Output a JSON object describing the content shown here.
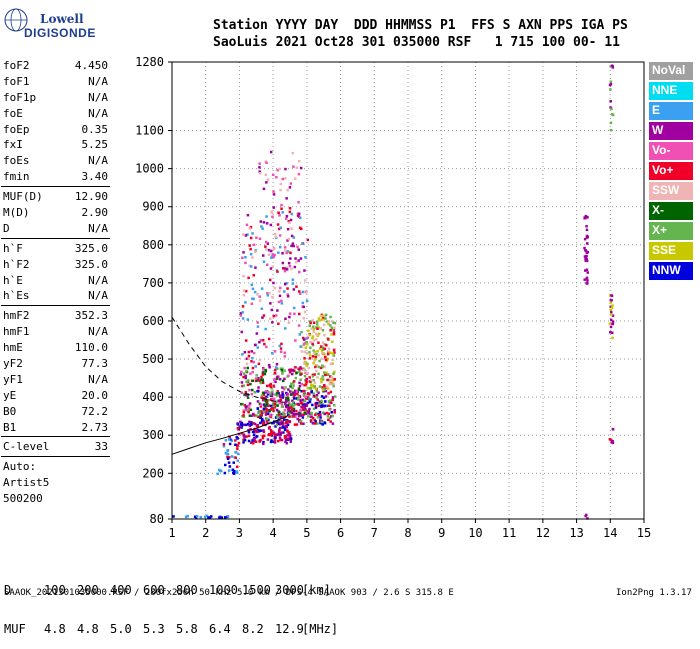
{
  "logo": {
    "line1": "Lowell",
    "line2": "DIGISONDE"
  },
  "header": {
    "line1": "Station YYYY DAY  DDD HHMMSS P1  FFS S AXN PPS IGA PS",
    "line2": "SaoLuis 2021 Oct28 301 035000 RSF   1 715 100 00- 11"
  },
  "params": {
    "group1": [
      {
        "key": "foF2",
        "value": "4.450"
      },
      {
        "key": "foF1",
        "value": "N/A"
      },
      {
        "key": "foF1p",
        "value": "N/A"
      },
      {
        "key": "foE",
        "value": "N/A"
      },
      {
        "key": "foEp",
        "value": "0.35"
      },
      {
        "key": "fxI",
        "value": "5.25"
      },
      {
        "key": "foEs",
        "value": "N/A"
      },
      {
        "key": "fmin",
        "value": "3.40"
      }
    ],
    "group2": [
      {
        "key": "MUF(D)",
        "value": "12.90"
      },
      {
        "key": "M(D)",
        "value": "2.90"
      },
      {
        "key": "D",
        "value": "N/A"
      }
    ],
    "group3": [
      {
        "key": "h`F",
        "value": "325.0"
      },
      {
        "key": "h`F2",
        "value": "325.0"
      },
      {
        "key": "h`E",
        "value": "N/A"
      },
      {
        "key": "h`Es",
        "value": "N/A"
      }
    ],
    "group4": [
      {
        "key": "hmF2",
        "value": "352.3"
      },
      {
        "key": "hmF1",
        "value": "N/A"
      },
      {
        "key": "hmE",
        "value": "110.0"
      },
      {
        "key": "yF2",
        "value": "77.3"
      },
      {
        "key": "yF1",
        "value": "N/A"
      },
      {
        "key": "yE",
        "value": "20.0"
      },
      {
        "key": "B0",
        "value": "72.2"
      },
      {
        "key": "B1",
        "value": "2.73"
      }
    ],
    "clevel": {
      "key": "C-level",
      "value": "33"
    },
    "auto_lines": [
      "Auto:",
      "Artist5",
      "500200"
    ]
  },
  "legend": [
    {
      "label": "NoVal",
      "color": "#a0a0a0"
    },
    {
      "label": "NNE",
      "color": "#00dcf0"
    },
    {
      "label": "E",
      "color": "#3ca0f0"
    },
    {
      "label": "W",
      "color": "#a000a0"
    },
    {
      "label": "Vo-",
      "color": "#f050b4"
    },
    {
      "label": "Vo+",
      "color": "#f00028"
    },
    {
      "label": "SSW",
      "color": "#f0b4b4"
    },
    {
      "label": "X-",
      "color": "#006400"
    },
    {
      "label": "X+",
      "color": "#64b450"
    },
    {
      "label": "SSE",
      "color": "#c8c800"
    },
    {
      "label": "NNW",
      "color": "#0000dc"
    }
  ],
  "chart_data": {
    "type": "scatter",
    "xlabel": "",
    "ylabel": "",
    "xlim": [
      1,
      15
    ],
    "ylim": [
      80,
      1280
    ],
    "x_ticks": [
      "1",
      "2",
      "3",
      "4",
      "5",
      "6",
      "7",
      "8",
      "9",
      "10",
      "11",
      "12",
      "13",
      "14",
      "15"
    ],
    "y_ticks": [
      "80",
      "200",
      "300",
      "400",
      "500",
      "600",
      "700",
      "800",
      "900",
      "1000",
      "1100",
      "1280"
    ],
    "grid": true,
    "profile_line": {
      "x": [
        1.0,
        1.5,
        2.0,
        2.5,
        3.0,
        3.5,
        4.0,
        4.3,
        4.45
      ],
      "y": [
        250,
        265,
        280,
        292,
        305,
        318,
        335,
        345,
        352
      ]
    },
    "profile_dashed": {
      "x": [
        1.0,
        1.5,
        2.0,
        2.5,
        3.0,
        3.5,
        4.0,
        4.45
      ],
      "y": [
        610,
        540,
        480,
        440,
        415,
        400,
        390,
        385
      ]
    },
    "clusters": [
      {
        "x": [
          2.2,
          2.9
        ],
        "y": [
          200,
          215
        ],
        "colors": [
          "#0000dc",
          "#3ca0f0"
        ],
        "density": 0.6
      },
      {
        "x": [
          1.0,
          2.7
        ],
        "y": [
          85,
          92
        ],
        "colors": [
          "#0000dc",
          "#3ca0f0"
        ],
        "density": 0.7
      },
      {
        "x": [
          2.5,
          3.0
        ],
        "y": [
          220,
          300
        ],
        "colors": [
          "#0000dc",
          "#f00028",
          "#3ca0f0"
        ],
        "density": 0.4
      },
      {
        "x": [
          2.9,
          4.5
        ],
        "y": [
          280,
          340
        ],
        "colors": [
          "#0000dc",
          "#f00028",
          "#a000a0"
        ],
        "density": 0.8
      },
      {
        "x": [
          3.5,
          5.8
        ],
        "y": [
          330,
          420
        ],
        "colors": [
          "#0000dc",
          "#f00028",
          "#a000a0",
          "#64b450"
        ],
        "density": 0.7
      },
      {
        "x": [
          3.0,
          5.0
        ],
        "y": [
          350,
          480
        ],
        "colors": [
          "#f00028",
          "#f050b4",
          "#a000a0",
          "#64b450",
          "#006400"
        ],
        "density": 0.45
      },
      {
        "x": [
          4.8,
          5.8
        ],
        "y": [
          420,
          620
        ],
        "colors": [
          "#c8c800",
          "#f0b4b4",
          "#64b450",
          "#f00028"
        ],
        "density": 0.5
      },
      {
        "x": [
          3.0,
          5.0
        ],
        "y": [
          480,
          900
        ],
        "colors": [
          "#a000a0",
          "#f00028",
          "#f0b4b4",
          "#f050b4",
          "#3ca0f0"
        ],
        "density": 0.12
      },
      {
        "x": [
          3.5,
          4.8
        ],
        "y": [
          600,
          1050
        ],
        "colors": [
          "#a000a0",
          "#f0b4b4",
          "#f050b4"
        ],
        "density": 0.06
      },
      {
        "x": [
          13.2,
          13.3
        ],
        "y": [
          700,
          880
        ],
        "colors": [
          "#a000a0"
        ],
        "density": 0.9
      },
      {
        "x": [
          13.95,
          14.05
        ],
        "y": [
          550,
          680
        ],
        "colors": [
          "#c8c800",
          "#a000a0"
        ],
        "density": 0.8
      },
      {
        "x": [
          13.95,
          14.05
        ],
        "y": [
          280,
          320
        ],
        "colors": [
          "#a000a0",
          "#f00028"
        ],
        "density": 0.8
      },
      {
        "x": [
          13.95,
          14.05
        ],
        "y": [
          1040,
          1280
        ],
        "colors": [
          "#a000a0",
          "#64b450"
        ],
        "density": 0.3
      },
      {
        "x": [
          13.2,
          13.3
        ],
        "y": [
          80,
          95
        ],
        "colors": [
          "#a000a0"
        ],
        "density": 0.9
      }
    ]
  },
  "footer": {
    "d_label": "D",
    "d_values": [
      "100",
      "200",
      "400",
      "600",
      "800",
      "1000",
      "1500",
      "3000"
    ],
    "d_unit": "[km]",
    "muf_label": "MUF",
    "muf_values": [
      "4.8",
      "4.8",
      "5.0",
      "5.3",
      "5.8",
      "6.4",
      "8.2",
      "12.9"
    ],
    "muf_unit": "[MHz]"
  },
  "bottom_line": "SAAOK_2021301035000.RSF / 280fx256h 50 kHz 5.0 km / DPS-4 SAAOK 903 / 2.6 S 315.8 E",
  "version": "Ion2Png 1.3.17"
}
